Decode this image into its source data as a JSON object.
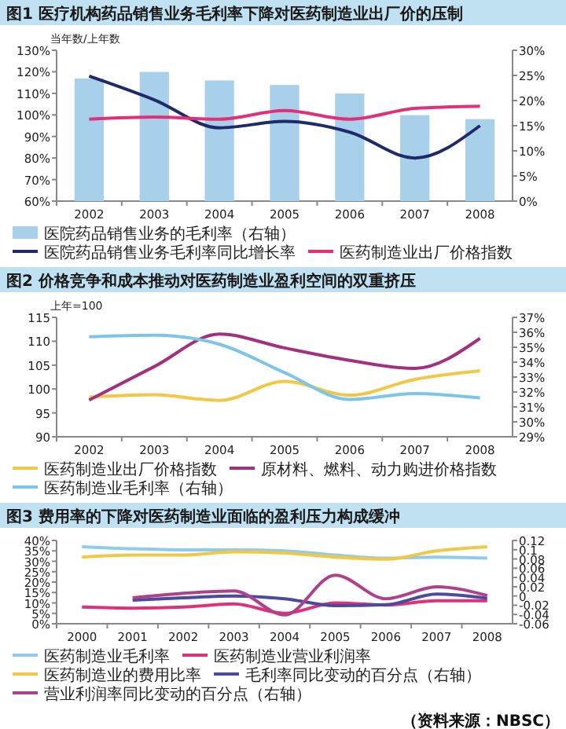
{
  "chart_data": [
    {
      "type": "line",
      "title": "图1  医疗机构药品销售业务毛利率下降对医药制造业出厂价的压制",
      "ylabel": "当年数/上年数",
      "categories": [
        "2002",
        "2003",
        "2004",
        "2005",
        "2006",
        "2007",
        "2008"
      ],
      "series": [
        {
          "name": "医院药品销售业务的毛利率（右轴）",
          "type": "bar",
          "axis": "y2",
          "color": "#a9d0ea",
          "values": [
            24.4,
            25.7,
            24.0,
            23.1,
            21.4,
            17.1,
            16.3
          ]
        },
        {
          "name": "医院药品销售业务毛利率同比增长率",
          "color": "#1f2a6b",
          "values": [
            118,
            107,
            94,
            97,
            92,
            80,
            95
          ]
        },
        {
          "name": "医药制造业出厂价格指数",
          "color": "#e0307a",
          "values": [
            98,
            99,
            98,
            102,
            98,
            103,
            104
          ]
        }
      ],
      "ylim": [
        60,
        130
      ],
      "yticks": [
        {
          "value": 60,
          "label": "60%"
        },
        {
          "value": 70,
          "label": "70%"
        },
        {
          "value": 80,
          "label": "80%"
        },
        {
          "value": 90,
          "label": "90%"
        },
        {
          "value": 100,
          "label": "100%"
        },
        {
          "value": 110,
          "label": "110%"
        },
        {
          "value": 120,
          "label": "120%"
        },
        {
          "value": 130,
          "label": "130%"
        }
      ],
      "y2lim": [
        0,
        30
      ],
      "y2ticks": [
        {
          "value": 0,
          "label": "0%"
        },
        {
          "value": 5,
          "label": "5%"
        },
        {
          "value": 10,
          "label": "10%"
        },
        {
          "value": 15,
          "label": "15%"
        },
        {
          "value": 20,
          "label": "20%"
        },
        {
          "value": 25,
          "label": "25%"
        },
        {
          "value": 30,
          "label": "30%"
        }
      ],
      "legend": "bottom"
    },
    {
      "type": "line",
      "title": "图2  价格竞争和成本推动对医药制造业盈利空间的双重挤压",
      "ylabel": "上年=100",
      "categories": [
        "2002",
        "2003",
        "2004",
        "2005",
        "2006",
        "2007",
        "2008"
      ],
      "series": [
        {
          "name": "医药制造业出厂价格指数",
          "color": "#f2c744",
          "values": [
            98.3,
            98.8,
            97.6,
            101.6,
            98.7,
            102,
            103.8
          ]
        },
        {
          "name": "原材料、燃料、动力购进价格指数",
          "color": "#a3307e",
          "values": [
            97.7,
            104.7,
            111.5,
            108.6,
            106,
            104.3,
            110.6
          ]
        },
        {
          "name": "医药制造业毛利率（右轴）",
          "axis": "y2",
          "color": "#7cc4e8",
          "values": [
            35.7,
            35.8,
            35.2,
            33.3,
            31.5,
            31.9,
            31.6
          ]
        }
      ],
      "ylim": [
        90,
        115
      ],
      "yticks": [
        90,
        95,
        100,
        105,
        110,
        115
      ],
      "y2lim": [
        29,
        37
      ],
      "y2ticks": [
        {
          "value": 29,
          "label": "29%"
        },
        {
          "value": 30,
          "label": "30%"
        },
        {
          "value": 31,
          "label": "31%"
        },
        {
          "value": 32,
          "label": "32%"
        },
        {
          "value": 33,
          "label": "33%"
        },
        {
          "value": 34,
          "label": "34%"
        },
        {
          "value": 35,
          "label": "35%"
        },
        {
          "value": 36,
          "label": "36%"
        },
        {
          "value": 37,
          "label": "37%"
        }
      ],
      "legend": "bottom"
    },
    {
      "type": "line",
      "title": "图3  费用率的下降对医药制造业面临的盈利压力构成缓冲",
      "categories": [
        "2000",
        "2001",
        "2002",
        "2003",
        "2004",
        "2005",
        "2006",
        "2007",
        "2008"
      ],
      "series": [
        {
          "name": "医药制造业毛利率",
          "color": "#8fcbea",
          "values": [
            37,
            36,
            35.5,
            35.5,
            35,
            33,
            31.5,
            32,
            31.5
          ]
        },
        {
          "name": "医药制造业营业利润率",
          "color": "#e0307a",
          "values": [
            8,
            7.5,
            8,
            9.5,
            5,
            10,
            9,
            11,
            11
          ]
        },
        {
          "name": "医药制造业的费用比率",
          "color": "#f2c744",
          "values": [
            32,
            33,
            33,
            34.5,
            34,
            32,
            31,
            35,
            37
          ]
        },
        {
          "name": "毛利率同比变动的百分点（右轴）",
          "axis": "y2",
          "color": "#4a4aa0",
          "values": [
            null,
            -0.009,
            -0.004,
            0,
            -0.006,
            -0.021,
            -0.019,
            0.004,
            -0.005
          ]
        },
        {
          "name": "营业利润率同比变动的百分点（右轴）",
          "axis": "y2",
          "color": "#b0408a",
          "values": [
            null,
            -0.004,
            0.006,
            0.011,
            -0.041,
            0.045,
            -0.006,
            0.02,
            0.001
          ]
        }
      ],
      "ylim": [
        0,
        40
      ],
      "yticks": [
        {
          "value": 0,
          "label": "0%"
        },
        {
          "value": 5,
          "label": "5%"
        },
        {
          "value": 10,
          "label": "10%"
        },
        {
          "value": 15,
          "label": "15%"
        },
        {
          "value": 20,
          "label": "20%"
        },
        {
          "value": 25,
          "label": "25%"
        },
        {
          "value": 30,
          "label": "30%"
        },
        {
          "value": 35,
          "label": "35%"
        },
        {
          "value": 40,
          "label": "40%"
        }
      ],
      "y2lim": [
        -0.06,
        0.12
      ],
      "y2ticks": [
        -0.06,
        -0.04,
        -0.02,
        0,
        0.02,
        0.04,
        0.06,
        0.08,
        0.1,
        0.12
      ],
      "legend": "bottom",
      "annotations": [
        "（资料来源：NBSC）"
      ]
    }
  ]
}
